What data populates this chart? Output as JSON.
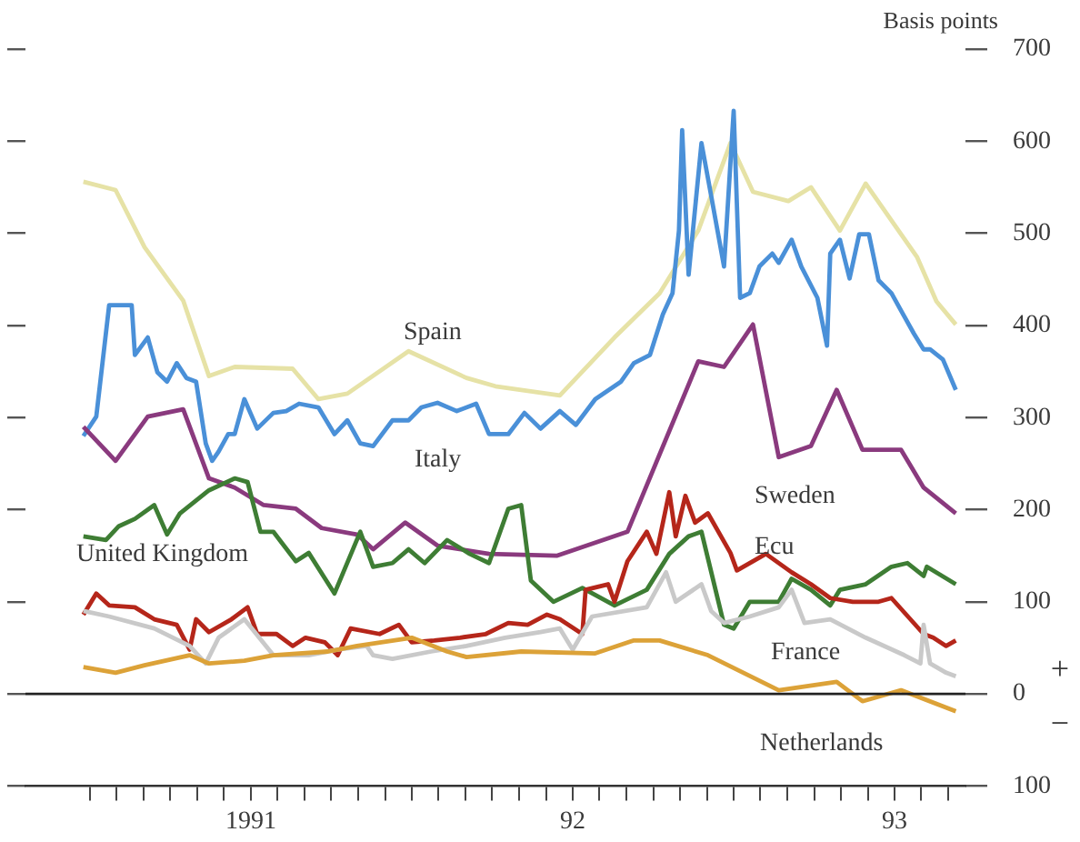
{
  "chart_data": {
    "type": "line",
    "ylabel": "Basis points",
    "xlim": [
      1990.3,
      1993.22
    ],
    "ylim": [
      -100,
      700
    ],
    "yticks": [
      {
        "value": -100,
        "label": "100"
      },
      0,
      100,
      200,
      300,
      400,
      500,
      600,
      700
    ],
    "xticks": [
      {
        "value": 1990.5,
        "label": null
      },
      {
        "value": 1990.583,
        "label": null
      },
      {
        "value": 1990.667,
        "label": null
      },
      {
        "value": 1990.75,
        "label": null
      },
      {
        "value": 1990.833,
        "label": null
      },
      {
        "value": 1990.917,
        "label": null
      },
      {
        "value": 1991,
        "label": "1991"
      },
      {
        "value": 1991.083,
        "label": null
      },
      {
        "value": 1991.167,
        "label": null
      },
      {
        "value": 1991.25,
        "label": null
      },
      {
        "value": 1991.333,
        "label": null
      },
      {
        "value": 1991.417,
        "label": null
      },
      {
        "value": 1991.5,
        "label": null
      },
      {
        "value": 1991.583,
        "label": null
      },
      {
        "value": 1991.667,
        "label": null
      },
      {
        "value": 1991.75,
        "label": null
      },
      {
        "value": 1991.833,
        "label": null
      },
      {
        "value": 1991.917,
        "label": null
      },
      {
        "value": 1992,
        "label": "92"
      },
      {
        "value": 1992.083,
        "label": null
      },
      {
        "value": 1992.167,
        "label": null
      },
      {
        "value": 1992.25,
        "label": null
      },
      {
        "value": 1992.333,
        "label": null
      },
      {
        "value": 1992.417,
        "label": null
      },
      {
        "value": 1992.5,
        "label": null
      },
      {
        "value": 1992.583,
        "label": null
      },
      {
        "value": 1992.667,
        "label": null
      },
      {
        "value": 1992.75,
        "label": null
      },
      {
        "value": 1992.833,
        "label": null
      },
      {
        "value": 1992.917,
        "label": null
      },
      {
        "value": 1993,
        "label": "93"
      },
      {
        "value": 1993.083,
        "label": null
      },
      {
        "value": 1993.167,
        "label": null
      }
    ],
    "grid": false,
    "legend": false,
    "marker": "none",
    "line_style": "solid",
    "ref_lines": [
      {
        "axis": "y",
        "value": 0,
        "color": "#222222"
      }
    ],
    "annotations": [
      "+",
      "−"
    ],
    "series": [
      {
        "name": "Spain",
        "color": "#e6e2a6",
        "x": [
          1990.48,
          1990.58,
          1990.67,
          1990.79,
          1990.87,
          1990.95,
          1991.13,
          1991.21,
          1991.3,
          1991.49,
          1991.67,
          1991.76,
          1991.96,
          1992.13,
          1992.27,
          1992.39,
          1992.49,
          1992.56,
          1992.67,
          1992.74,
          1992.83,
          1992.91,
          1993.07,
          1993.13,
          1993.19
        ],
        "values": [
          556,
          547,
          485,
          427,
          345,
          355,
          353,
          320,
          326,
          372,
          343,
          334,
          324,
          387,
          435,
          503,
          598,
          545,
          535,
          550,
          503,
          554,
          474,
          426,
          401
        ]
      },
      {
        "name": "Italy",
        "color": "#4a90d8",
        "x": [
          1990.48,
          1990.52,
          1990.56,
          1990.63,
          1990.64,
          1990.68,
          1990.71,
          1990.74,
          1990.77,
          1990.8,
          1990.83,
          1990.86,
          1990.88,
          1990.9,
          1990.93,
          1990.95,
          1990.98,
          1991.02,
          1991.07,
          1991.11,
          1991.15,
          1991.21,
          1991.26,
          1991.3,
          1991.34,
          1991.38,
          1991.44,
          1991.49,
          1991.53,
          1991.58,
          1991.64,
          1991.7,
          1991.74,
          1991.8,
          1991.85,
          1991.9,
          1991.96,
          1992.01,
          1992.07,
          1992.15,
          1992.19,
          1992.24,
          1992.28,
          1992.31,
          1992.33,
          1992.34,
          1992.36,
          1992.4,
          1992.43,
          1992.47,
          1992.5,
          1992.52,
          1992.55,
          1992.58,
          1992.62,
          1992.64,
          1992.68,
          1992.71,
          1992.76,
          1992.79,
          1992.8,
          1992.83,
          1992.86,
          1992.89,
          1992.92,
          1992.95,
          1992.99,
          1993.02,
          1993.06,
          1993.09,
          1993.11,
          1993.15,
          1993.19
        ],
        "values": [
          280,
          301,
          422,
          422,
          368,
          387,
          349,
          339,
          359,
          343,
          339,
          272,
          253,
          263,
          282,
          282,
          320,
          288,
          305,
          307,
          315,
          311,
          282,
          297,
          272,
          269,
          297,
          297,
          311,
          316,
          307,
          315,
          282,
          282,
          305,
          288,
          307,
          292,
          320,
          339,
          359,
          368,
          412,
          435,
          503,
          612,
          455,
          598,
          541,
          464,
          633,
          430,
          435,
          464,
          478,
          468,
          493,
          464,
          430,
          378,
          478,
          493,
          451,
          499,
          499,
          449,
          435,
          416,
          391,
          374,
          374,
          363,
          330
        ]
      },
      {
        "name": "Sweden",
        "color": "#8a3a7e",
        "x": [
          1990.48,
          1990.58,
          1990.68,
          1990.79,
          1990.87,
          1990.95,
          1991.04,
          1991.14,
          1991.22,
          1991.33,
          1991.38,
          1991.48,
          1991.58,
          1991.74,
          1991.95,
          1992.17,
          1992.39,
          1992.47,
          1992.56,
          1992.64,
          1992.74,
          1992.82,
          1992.9,
          1993.02,
          1993.09,
          1993.19
        ],
        "values": [
          290,
          253,
          301,
          309,
          234,
          224,
          205,
          201,
          180,
          173,
          157,
          186,
          161,
          152,
          150,
          176,
          361,
          355,
          401,
          257,
          269,
          330,
          265,
          265,
          224,
          196
        ]
      },
      {
        "name": "United Kingdom",
        "color": "#3e7d34",
        "x": [
          1990.48,
          1990.55,
          1990.59,
          1990.64,
          1990.7,
          1990.74,
          1990.78,
          1990.87,
          1990.95,
          1990.99,
          1991.03,
          1991.07,
          1991.14,
          1991.18,
          1991.26,
          1991.34,
          1991.38,
          1991.44,
          1991.49,
          1991.54,
          1991.61,
          1991.68,
          1991.74,
          1991.8,
          1991.84,
          1991.87,
          1991.94,
          1992.03,
          1992.13,
          1992.23,
          1992.3,
          1992.36,
          1992.4,
          1992.47,
          1992.5,
          1992.55,
          1992.64,
          1992.68,
          1992.74,
          1992.8,
          1992.83,
          1992.91,
          1992.99,
          1993.04,
          1993.09,
          1993.1,
          1993.19
        ],
        "values": [
          171,
          167,
          182,
          190,
          205,
          173,
          196,
          221,
          234,
          230,
          176,
          176,
          144,
          153,
          109,
          176,
          138,
          142,
          157,
          142,
          167,
          152,
          142,
          201,
          205,
          123,
          100,
          115,
          96,
          113,
          152,
          171,
          176,
          75,
          71,
          100,
          100,
          125,
          113,
          96,
          113,
          119,
          138,
          142,
          128,
          138,
          119
        ]
      },
      {
        "name": "Ecu",
        "color": "#b5261a",
        "x": [
          1990.48,
          1990.52,
          1990.56,
          1990.64,
          1990.7,
          1990.77,
          1990.81,
          1990.83,
          1990.87,
          1990.94,
          1990.99,
          1991.02,
          1991.08,
          1991.13,
          1991.17,
          1991.23,
          1991.27,
          1991.31,
          1991.4,
          1991.46,
          1991.5,
          1991.57,
          1991.65,
          1991.73,
          1991.8,
          1991.86,
          1991.92,
          1991.96,
          1992.03,
          1992.04,
          1992.11,
          1992.13,
          1992.17,
          1992.23,
          1992.26,
          1992.3,
          1992.32,
          1992.35,
          1992.38,
          1992.42,
          1992.49,
          1992.51,
          1992.6,
          1992.68,
          1992.74,
          1992.8,
          1992.87,
          1992.95,
          1992.99,
          1993.09,
          1993.12,
          1993.16,
          1993.19
        ],
        "values": [
          86,
          109,
          96,
          94,
          81,
          75,
          48,
          81,
          67,
          81,
          94,
          65,
          65,
          52,
          61,
          56,
          42,
          71,
          65,
          75,
          56,
          58,
          61,
          65,
          77,
          75,
          86,
          81,
          65,
          113,
          119,
          100,
          144,
          176,
          152,
          219,
          171,
          215,
          186,
          196,
          153,
          134,
          152,
          132,
          119,
          104,
          100,
          100,
          104,
          65,
          61,
          52,
          58
        ]
      },
      {
        "name": "France",
        "color": "#c9c9c9",
        "x": [
          1990.48,
          1990.56,
          1990.7,
          1990.81,
          1990.86,
          1990.9,
          1990.98,
          1991.07,
          1991.18,
          1991.27,
          1991.36,
          1991.38,
          1991.44,
          1991.56,
          1991.67,
          1991.79,
          1991.9,
          1991.96,
          1992,
          1992.06,
          1992.23,
          1992.29,
          1992.32,
          1992.4,
          1992.43,
          1992.47,
          1992.55,
          1992.64,
          1992.68,
          1992.72,
          1992.8,
          1992.91,
          1993.03,
          1993.08,
          1993.09,
          1993.11,
          1993.16,
          1993.19
        ],
        "values": [
          90,
          84,
          71,
          52,
          33,
          61,
          81,
          42,
          42,
          48,
          52,
          42,
          38,
          46,
          52,
          61,
          67,
          71,
          48,
          84,
          94,
          132,
          100,
          119,
          90,
          77,
          84,
          94,
          113,
          77,
          81,
          61,
          42,
          33,
          75,
          33,
          23,
          19
        ]
      },
      {
        "name": "Netherlands",
        "color": "#dca238",
        "x": [
          1990.48,
          1990.58,
          1990.67,
          1990.81,
          1990.87,
          1990.98,
          1991.07,
          1991.24,
          1991.33,
          1991.5,
          1991.61,
          1991.67,
          1991.84,
          1992.07,
          1992.19,
          1992.27,
          1992.42,
          1992.64,
          1992.82,
          1992.9,
          1993.02,
          1993.19
        ],
        "values": [
          29,
          23,
          31,
          42,
          33,
          36,
          42,
          46,
          52,
          61,
          46,
          40,
          46,
          44,
          58,
          58,
          42,
          4,
          13,
          -8,
          4,
          -19
        ]
      }
    ]
  }
}
